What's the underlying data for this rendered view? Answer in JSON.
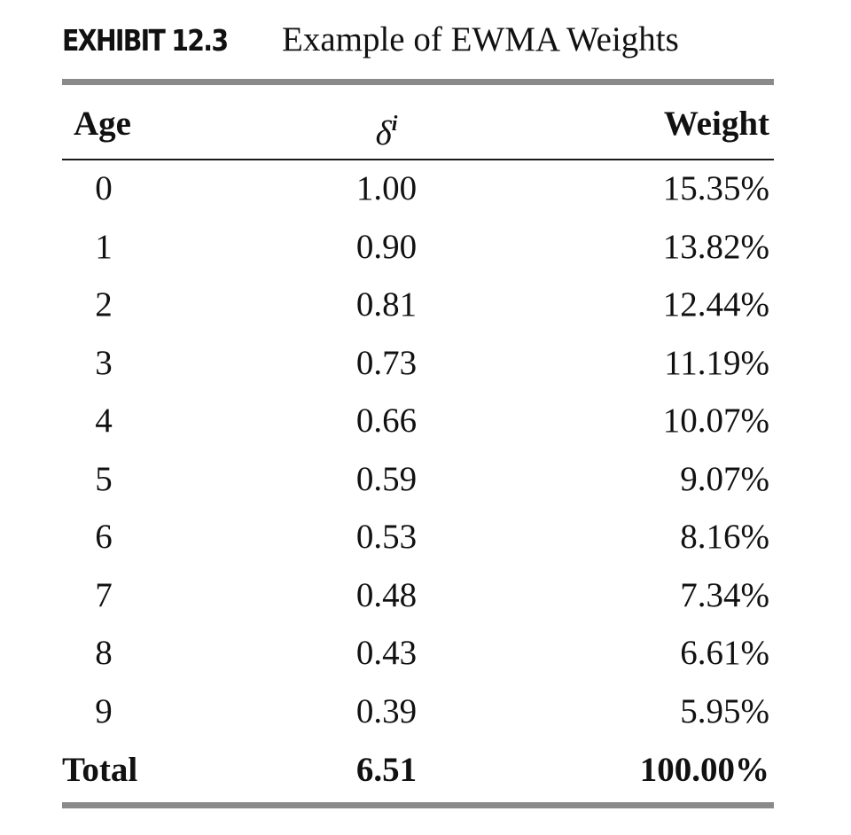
{
  "exhibit": {
    "label": "EXHIBIT 12.3",
    "title": "Example of EWMA Weights"
  },
  "table": {
    "headers": {
      "age": "Age",
      "delta_symbol": "δ",
      "delta_superscript": "i",
      "weight": "Weight"
    },
    "rows": [
      {
        "age": "0",
        "delta": "1.00",
        "weight": "15.35%"
      },
      {
        "age": "1",
        "delta": "0.90",
        "weight": "13.82%"
      },
      {
        "age": "2",
        "delta": "0.81",
        "weight": "12.44%"
      },
      {
        "age": "3",
        "delta": "0.73",
        "weight": "11.19%"
      },
      {
        "age": "4",
        "delta": "0.66",
        "weight": "10.07%"
      },
      {
        "age": "5",
        "delta": "0.59",
        "weight": "9.07%"
      },
      {
        "age": "6",
        "delta": "0.53",
        "weight": "8.16%"
      },
      {
        "age": "7",
        "delta": "0.48",
        "weight": "7.34%"
      },
      {
        "age": "8",
        "delta": "0.43",
        "weight": "6.61%"
      },
      {
        "age": "9",
        "delta": "0.39",
        "weight": "5.95%"
      }
    ],
    "total": {
      "label": "Total",
      "delta": "6.51",
      "weight": "100.00%"
    }
  }
}
